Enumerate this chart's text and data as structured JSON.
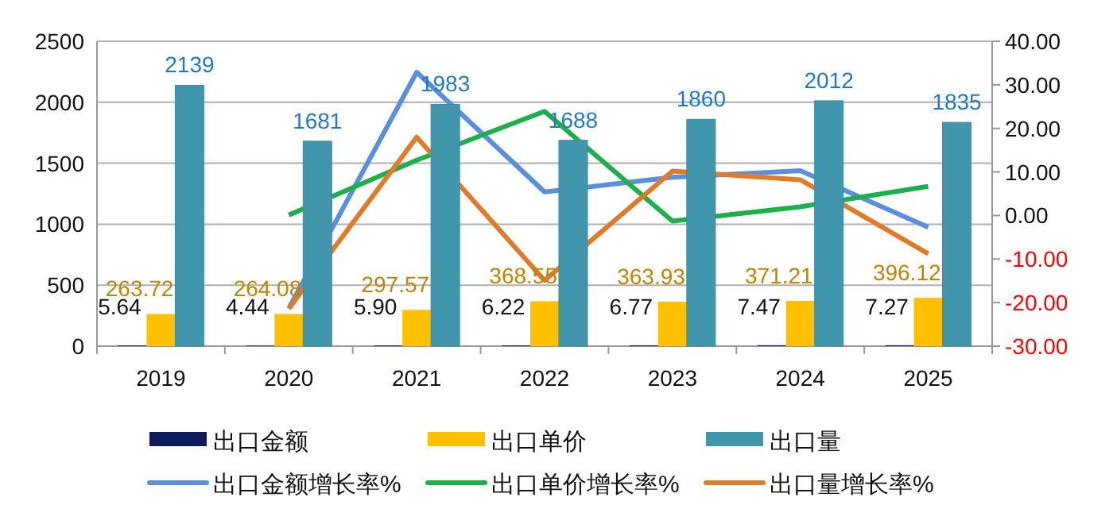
{
  "chart_data": {
    "type": "bar",
    "categories": [
      "2019",
      "2020",
      "2021",
      "2022",
      "2023",
      "2024",
      "2025"
    ],
    "series": [
      {
        "name": "出口金额",
        "color": "#0d1a5c",
        "values": [
          5.64,
          4.44,
          5.9,
          6.22,
          6.77,
          7.47,
          7.27
        ],
        "value_labels": [
          "5.64",
          "4.44",
          "5.90",
          "6.22",
          "6.77",
          "7.47",
          "7.27"
        ]
      },
      {
        "name": "出口单价",
        "color": "#ffc000",
        "values": [
          263.72,
          264.08,
          297.57,
          368.55,
          363.93,
          371.21,
          396.12
        ],
        "value_labels": [
          "263.72",
          "264.08",
          "297.57",
          "368.55",
          "363.93",
          "371.21",
          "396.12"
        ]
      },
      {
        "name": "出口量",
        "color": "#4196ad",
        "values": [
          2139,
          1681,
          1983,
          1688,
          1860,
          2012,
          1835
        ],
        "value_labels": [
          "2139",
          "1681",
          "1983",
          "1688",
          "1860",
          "2012",
          "1835"
        ]
      },
      {
        "name": "出口金额增长率%",
        "type": "line",
        "axis": "y2",
        "color": "#5b8fdc",
        "values": [
          null,
          -21.3,
          32.9,
          5.4,
          8.8,
          10.3,
          -2.7
        ]
      },
      {
        "name": "出口单价增长率%",
        "type": "line",
        "axis": "y2",
        "color": "#1cb04a",
        "values": [
          null,
          0.1,
          12.7,
          23.9,
          -1.3,
          2.0,
          6.7
        ]
      },
      {
        "name": "出口量增长率%",
        "type": "line",
        "axis": "y2",
        "color": "#e07b29",
        "values": [
          null,
          -21.4,
          18.0,
          -14.9,
          10.2,
          8.2,
          -8.8
        ]
      }
    ],
    "ylim": [
      0,
      2500
    ],
    "yticks": [
      0,
      500,
      1000,
      1500,
      2000,
      2500
    ],
    "y2lim": [
      -30,
      40
    ],
    "y2ticks": [
      {
        "value": 40,
        "label": "40.00"
      },
      {
        "value": 30,
        "label": "30.00"
      },
      {
        "value": 20,
        "label": "20.00"
      },
      {
        "value": 10,
        "label": "10.00"
      },
      {
        "value": 0,
        "label": "0.00"
      },
      {
        "value": -10,
        "label": "-10.00"
      },
      {
        "value": -20,
        "label": "-20.00"
      },
      {
        "value": -30,
        "label": "-30.00"
      }
    ],
    "grid": "y",
    "legend": "bottom"
  }
}
